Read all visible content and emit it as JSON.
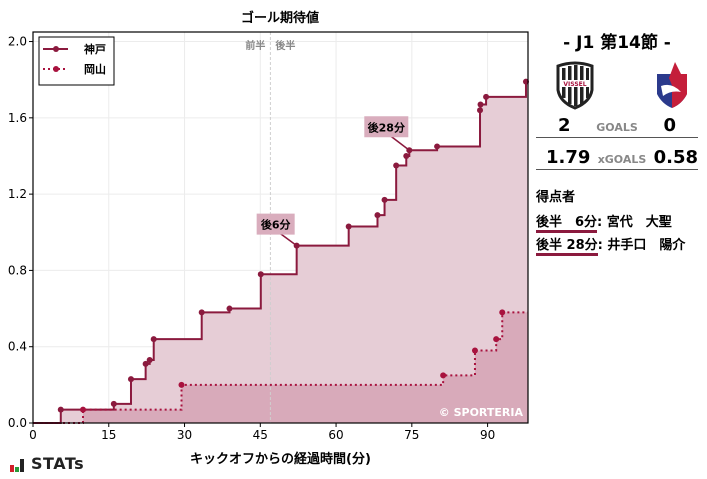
{
  "chart_data": {
    "type": "line",
    "title": "ゴール期待値",
    "xlabel": "キックオフからの経過時間(分)",
    "ylabel": "",
    "xlim": [
      0,
      98
    ],
    "ylim": [
      0,
      2.05
    ],
    "xticks": [
      0,
      15,
      30,
      45,
      60,
      75,
      90
    ],
    "yticks": [
      0.0,
      0.4,
      0.8,
      1.2,
      1.6,
      2.0
    ],
    "ytick_labels": [
      "0.0",
      "0.4",
      "0.8",
      "1.2",
      "1.6",
      "2.0"
    ],
    "grid": true,
    "legend_position": "upper left",
    "half_divider": {
      "x": 47,
      "first_half_label": "前半",
      "second_half_label": "後半"
    },
    "series": [
      {
        "name": "神戸",
        "style": "solid",
        "color": "#8b1a3e",
        "fill": "#e6cdd6",
        "shots": [
          {
            "minute": 5.5,
            "xg": 0.07
          },
          {
            "minute": 16,
            "xg": 0.1
          },
          {
            "minute": 19.4,
            "xg": 0.23
          },
          {
            "minute": 22.3,
            "xg": 0.31
          },
          {
            "minute": 23.1,
            "xg": 0.33
          },
          {
            "minute": 23.9,
            "xg": 0.44
          },
          {
            "minute": 33.4,
            "xg": 0.58
          },
          {
            "minute": 38.9,
            "xg": 0.6
          },
          {
            "minute": 45.1,
            "xg": 0.78
          },
          {
            "minute": 52.2,
            "xg": 0.93
          },
          {
            "minute": 62.5,
            "xg": 1.03
          },
          {
            "minute": 68.2,
            "xg": 1.09
          },
          {
            "minute": 69.6,
            "xg": 1.17
          },
          {
            "minute": 71.9,
            "xg": 1.35
          },
          {
            "minute": 73.9,
            "xg": 1.4
          },
          {
            "minute": 74.5,
            "xg": 1.43
          },
          {
            "minute": 80.0,
            "xg": 1.45
          },
          {
            "minute": 88.5,
            "xg": 1.64
          },
          {
            "minute": 88.6,
            "xg": 1.67
          },
          {
            "minute": 89.7,
            "xg": 1.71
          },
          {
            "minute": 97.6,
            "xg": 1.79
          }
        ],
        "end_minute": 98
      },
      {
        "name": "岡山",
        "style": "dotted",
        "color": "#a8123e",
        "fill": "#d6a6b7",
        "shots": [
          {
            "minute": 9.9,
            "xg": 0.07
          },
          {
            "minute": 29.4,
            "xg": 0.2
          },
          {
            "minute": 81.2,
            "xg": 0.25
          },
          {
            "minute": 87.5,
            "xg": 0.38
          },
          {
            "minute": 91.7,
            "xg": 0.44
          },
          {
            "minute": 92.9,
            "xg": 0.58
          }
        ],
        "end_minute": 98
      }
    ],
    "annotations": [
      {
        "text": "後6分",
        "minute": 52.2,
        "xg": 0.93
      },
      {
        "text": "後28分",
        "minute": 74.5,
        "xg": 1.43
      },
      {
        "text": "© SPORTERIA",
        "position": "lower right"
      }
    ]
  },
  "match": {
    "title": "- J1 第14節 -",
    "home": {
      "name": "神戸",
      "logo_icon": "vissel-kobe-crest-icon",
      "goals": "2",
      "xg": "1.79"
    },
    "away": {
      "name": "岡山",
      "logo_icon": "fagiano-okayama-crest-icon",
      "goals": "0",
      "xg": "0.58"
    },
    "goals_label": "GOALS",
    "xg_label": "xGOALS"
  },
  "scorers": {
    "title": "得点者",
    "items": [
      {
        "time": "後半　6分",
        "name": ": 宮代　大聖"
      },
      {
        "time": "後半 28分",
        "name": ": 井手口　陽介"
      }
    ]
  },
  "brand": {
    "name": "STATs",
    "colors": [
      "#d11f2a",
      "#2a9a3a",
      "#222222"
    ]
  },
  "colors": {
    "home": "#8b1a3e",
    "away": "#a8123e",
    "home_fill": "#e6cdd6",
    "away_fill": "#d6a6b7",
    "annotation_bg": "#d9adbd"
  }
}
